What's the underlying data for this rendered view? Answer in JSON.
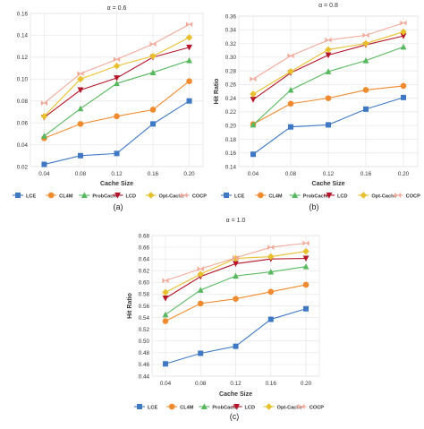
{
  "series_styles": [
    {
      "name": "LCE",
      "color": "#3f79c4",
      "marker": "square"
    },
    {
      "name": "CL4M",
      "color": "#f08a2e",
      "marker": "circle"
    },
    {
      "name": "ProbCache",
      "color": "#58b85f",
      "marker": "triangle-up"
    },
    {
      "name": "LCD",
      "color": "#b5162a",
      "marker": "triangle-down"
    },
    {
      "name": "Opt-Cache",
      "color": "#e8c02e",
      "marker": "diamond"
    },
    {
      "name": "COCP",
      "color": "#f2a999",
      "marker": "bowtie"
    }
  ],
  "chart_data": [
    {
      "type": "line",
      "title": "α = 0.6",
      "xlabel": "Cache Size",
      "ylabel": "",
      "caption": "(a)",
      "x": [
        "0.04",
        "0.08",
        "0.12",
        "0.16",
        "0.20"
      ],
      "ylim": [
        0.02,
        0.16
      ],
      "yticks": [
        "0.02",
        "0.04",
        "0.06",
        "0.08",
        "0.10",
        "0.12",
        "0.14",
        "0.16"
      ],
      "grid": true,
      "legend": "bottom",
      "series": [
        {
          "name": "LCE",
          "values": [
            0.022,
            0.03,
            0.032,
            0.059,
            0.08
          ]
        },
        {
          "name": "CL4M",
          "values": [
            0.046,
            0.059,
            0.066,
            0.072,
            0.098
          ]
        },
        {
          "name": "ProbCache",
          "values": [
            0.048,
            0.073,
            0.096,
            0.106,
            0.117
          ]
        },
        {
          "name": "LCD",
          "values": [
            0.065,
            0.09,
            0.101,
            0.12,
            0.129
          ]
        },
        {
          "name": "Opt-Cache",
          "values": [
            0.066,
            0.1,
            0.112,
            0.121,
            0.138
          ]
        },
        {
          "name": "COCP",
          "values": [
            0.078,
            0.105,
            0.118,
            0.132,
            0.15
          ]
        }
      ]
    },
    {
      "type": "line",
      "title": "α = 0.8",
      "xlabel": "Cache Size",
      "ylabel": "Hit Ratio",
      "caption": "(b)",
      "x": [
        "0.04",
        "0.08",
        "0.12",
        "0.16",
        "0.20"
      ],
      "ylim": [
        0.14,
        0.36
      ],
      "yticks": [
        "0.14",
        "0.16",
        "0.18",
        "0.20",
        "0.22",
        "0.24",
        "0.26",
        "0.28",
        "0.30",
        "0.32",
        "0.34",
        "0.36"
      ],
      "grid": true,
      "legend": "bottom",
      "series": [
        {
          "name": "LCE",
          "values": [
            0.158,
            0.198,
            0.201,
            0.224,
            0.241
          ]
        },
        {
          "name": "CL4M",
          "values": [
            0.202,
            0.232,
            0.24,
            0.252,
            0.258
          ]
        },
        {
          "name": "ProbCache",
          "values": [
            0.201,
            0.252,
            0.279,
            0.295,
            0.315
          ]
        },
        {
          "name": "LCD",
          "values": [
            0.238,
            0.277,
            0.303,
            0.318,
            0.331
          ]
        },
        {
          "name": "Opt-Cache",
          "values": [
            0.246,
            0.279,
            0.311,
            0.32,
            0.337
          ]
        },
        {
          "name": "COCP",
          "values": [
            0.268,
            0.302,
            0.325,
            0.332,
            0.35
          ]
        }
      ]
    },
    {
      "type": "line",
      "title": "α = 1.0",
      "xlabel": "Cache Size",
      "ylabel": "Hit Ratio",
      "caption": "(c)",
      "x": [
        "0.04",
        "0.08",
        "0.12",
        "0.16",
        "0.20"
      ],
      "ylim": [
        0.44,
        0.68
      ],
      "yticks": [
        "0.44",
        "0.46",
        "0.48",
        "0.50",
        "0.52",
        "0.54",
        "0.56",
        "0.58",
        "0.60",
        "0.62",
        "0.64",
        "0.66",
        "0.68"
      ],
      "grid": true,
      "legend": "bottom",
      "series": [
        {
          "name": "LCE",
          "values": [
            0.461,
            0.479,
            0.491,
            0.537,
            0.555
          ]
        },
        {
          "name": "CL4M",
          "values": [
            0.534,
            0.564,
            0.572,
            0.584,
            0.596
          ]
        },
        {
          "name": "ProbCache",
          "values": [
            0.545,
            0.587,
            0.611,
            0.618,
            0.627
          ]
        },
        {
          "name": "LCD",
          "values": [
            0.573,
            0.61,
            0.632,
            0.64,
            0.641
          ]
        },
        {
          "name": "Opt-Cache",
          "values": [
            0.583,
            0.614,
            0.641,
            0.644,
            0.653
          ]
        },
        {
          "name": "COCP",
          "values": [
            0.603,
            0.623,
            0.642,
            0.66,
            0.667
          ]
        }
      ]
    }
  ]
}
